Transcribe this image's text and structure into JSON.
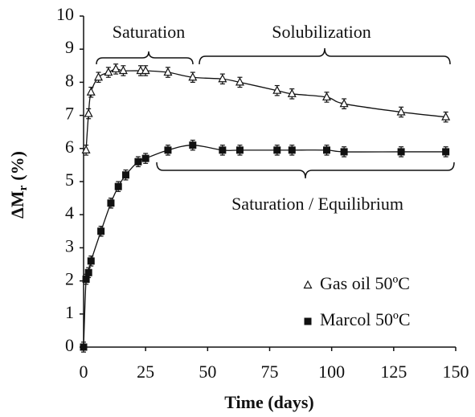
{
  "chart_data": {
    "type": "scatter",
    "x_label": "Time (days)",
    "y_label": {
      "main": "ΔM",
      "sub": "r",
      "unit": "(%)"
    },
    "xlim": [
      0,
      150
    ],
    "xticks": [
      0,
      25,
      50,
      75,
      100,
      125,
      150
    ],
    "ylim": [
      0,
      10
    ],
    "yticks": [
      0,
      1,
      2,
      3,
      4,
      5,
      6,
      7,
      8,
      9,
      10
    ],
    "legend": "lower right",
    "annotations": [
      "Saturation",
      "Solubilization",
      "Saturation / Equilibrium"
    ],
    "series": [
      {
        "name": "Gas oil 50ºC",
        "marker": "open-triangle",
        "color": "#111111",
        "x": [
          1,
          2,
          3,
          6,
          10,
          13,
          16,
          23,
          25,
          34,
          44,
          56,
          63,
          78,
          84,
          98,
          105,
          128,
          146
        ],
        "values": [
          5.95,
          7.05,
          7.7,
          8.15,
          8.3,
          8.4,
          8.35,
          8.35,
          8.35,
          8.3,
          8.15,
          8.1,
          8.0,
          7.75,
          7.65,
          7.55,
          7.35,
          7.1,
          6.95
        ],
        "errors": [
          0.15,
          0.15,
          0.15,
          0.15,
          0.15,
          0.15,
          0.15,
          0.15,
          0.15,
          0.15,
          0.15,
          0.15,
          0.15,
          0.15,
          0.15,
          0.15,
          0.15,
          0.15,
          0.15
        ]
      },
      {
        "name": "Marcol 50ºC",
        "marker": "filled-square",
        "color": "#111111",
        "x": [
          0,
          1,
          2,
          3,
          7,
          11,
          14,
          17,
          22,
          25,
          34,
          44,
          56,
          63,
          78,
          84,
          98,
          105,
          128,
          146
        ],
        "values": [
          0,
          2.05,
          2.25,
          2.6,
          3.5,
          4.35,
          4.85,
          5.2,
          5.6,
          5.7,
          5.95,
          6.1,
          5.95,
          5.95,
          5.95,
          5.95,
          5.95,
          5.9,
          5.9,
          5.9
        ],
        "errors": [
          0.15,
          0.15,
          0.15,
          0.15,
          0.15,
          0.15,
          0.15,
          0.15,
          0.15,
          0.15,
          0.15,
          0.15,
          0.15,
          0.15,
          0.15,
          0.15,
          0.15,
          0.15,
          0.15,
          0.15
        ]
      }
    ]
  }
}
